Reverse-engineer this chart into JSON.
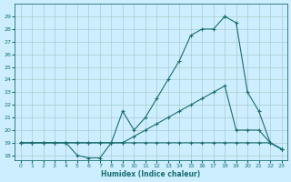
{
  "xlabel": "Humidex (Indice chaleur)",
  "bg_color": "#cceeff",
  "grid_color": "#aacccc",
  "line_color": "#1a6e6e",
  "xlim": [
    -0.5,
    23.5
  ],
  "ylim": [
    17.6,
    30.0
  ],
  "xticks": [
    0,
    1,
    2,
    3,
    4,
    5,
    6,
    7,
    8,
    9,
    10,
    11,
    12,
    13,
    14,
    15,
    16,
    17,
    18,
    19,
    20,
    21,
    22,
    23
  ],
  "yticks": [
    18,
    19,
    20,
    21,
    22,
    23,
    24,
    25,
    26,
    27,
    28,
    29
  ],
  "line1_x": [
    0,
    1,
    2,
    3,
    4,
    5,
    6,
    7,
    8,
    9,
    10,
    11,
    12,
    13,
    14,
    15,
    16,
    17,
    18
  ],
  "line1_y": [
    19,
    19,
    19,
    19,
    19,
    18,
    17.8,
    17.8,
    19,
    21.5,
    20,
    21,
    22.5,
    24,
    25.5,
    27.5,
    28,
    28,
    29
  ],
  "line2_x": [
    18,
    19,
    20,
    21,
    22,
    23
  ],
  "line2_y": [
    29,
    28.5,
    23.0,
    21.5,
    19,
    18.5
  ],
  "line3_x": [
    0,
    1,
    2,
    3,
    4,
    5,
    6,
    7,
    8,
    9,
    10,
    11,
    12,
    13,
    14,
    15,
    16,
    17,
    18,
    19,
    20,
    21,
    22,
    23
  ],
  "line3_y": [
    19,
    19,
    19,
    19,
    19,
    19,
    19,
    19,
    19,
    19,
    19.5,
    20,
    20.5,
    21,
    21.5,
    22,
    22.5,
    23,
    23.5,
    20.0,
    20.0,
    20.0,
    19,
    18.5
  ],
  "line4_x": [
    0,
    1,
    2,
    3,
    4,
    5,
    6,
    7,
    8,
    9,
    10,
    11,
    12,
    13,
    14,
    15,
    16,
    17,
    18,
    19,
    20,
    21,
    22,
    23
  ],
  "line4_y": [
    19,
    19,
    19,
    19,
    19,
    19,
    19,
    19,
    19,
    19,
    19,
    19,
    19,
    19,
    19,
    19,
    19,
    19,
    19,
    19,
    19,
    19,
    19,
    18.5
  ]
}
